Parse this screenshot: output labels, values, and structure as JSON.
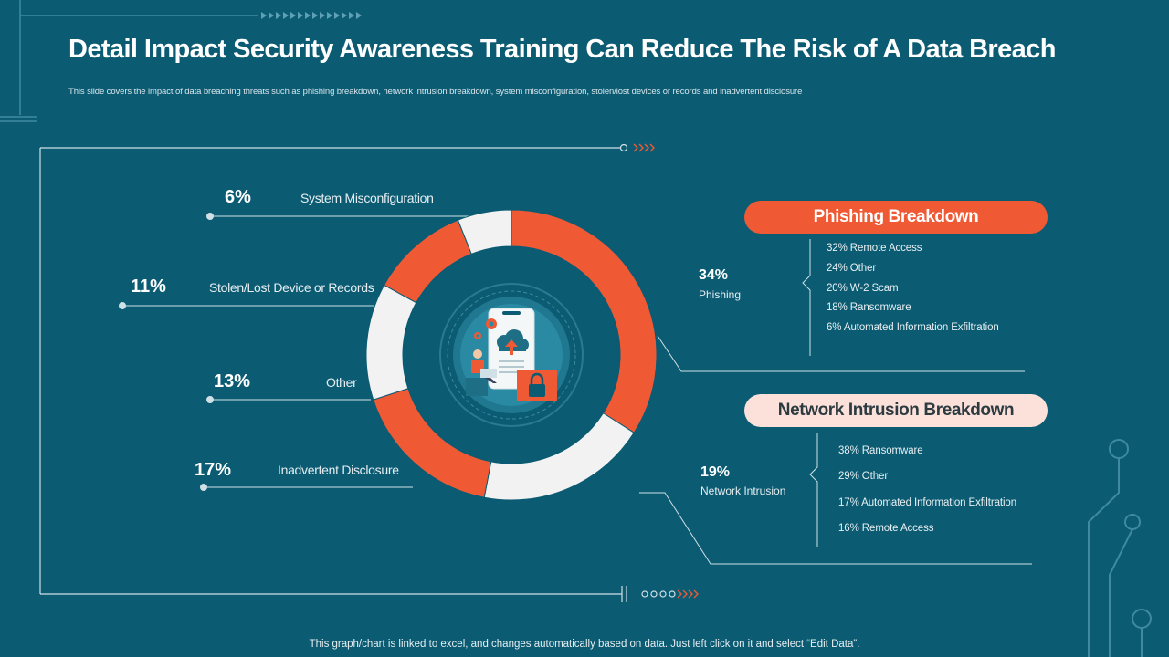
{
  "title": "Detail Impact Security Awareness Training Can Reduce The Risk of A Data Breach",
  "subtitle": "This slide covers the impact of data breaching threats such as phishing breakdown, network intrusion breakdown, system misconfiguration, stolen/lost devices or records and inadvertent disclosure",
  "footer": "This graph/chart is linked to excel, and changes automatically based on data. Just left click on it and select “Edit Data”.",
  "colors": {
    "background": "#0b5b73",
    "accent": "#ef5a35",
    "light": "#f2f2f2",
    "pill_light": "#fbe1da"
  },
  "chart_data": {
    "type": "donut",
    "segments": [
      {
        "name": "Phishing",
        "value": 34,
        "label": "34%",
        "color": "#ef5a35"
      },
      {
        "name": "Network Intrusion",
        "value": 19,
        "label": "19%",
        "color": "#f2f2f2"
      },
      {
        "name": "Inadvertent Disclosure",
        "value": 17,
        "label": "17%",
        "color": "#ef5a35"
      },
      {
        "name": "Other",
        "value": 13,
        "label": "13%",
        "color": "#f2f2f2"
      },
      {
        "name": "Stolen/Lost Device or Records",
        "value": 11,
        "label": "11%",
        "color": "#ef5a35"
      },
      {
        "name": "System Misconfiguration",
        "value": 6,
        "label": "6%",
        "color": "#f2f2f2"
      }
    ]
  },
  "left_labels": {
    "system_misconfig": {
      "pct": "6%",
      "label": "System Misconfiguration"
    },
    "stolen_lost": {
      "pct": "11%",
      "label": "Stolen/Lost Device or Records"
    },
    "other": {
      "pct": "13%",
      "label": "Other"
    },
    "inadvertent": {
      "pct": "17%",
      "label": "Inadvertent Disclosure"
    }
  },
  "phishing": {
    "pct": "34%",
    "label": "Phishing",
    "title": "Phishing Breakdown",
    "items": [
      "32% Remote Access",
      "24% Other",
      "20% W-2 Scam",
      "18% Ransomware",
      "6% Automated Information Exfiltration"
    ]
  },
  "network": {
    "pct": "19%",
    "label": "Network Intrusion",
    "title": "Network Intrusion Breakdown",
    "items": [
      "38% Ransomware",
      "29% Other",
      "17% Automated Information Exfiltration",
      "16% Remote Access"
    ]
  },
  "icons": {
    "center": "cloud-upload-security-icon",
    "lock": "padlock-icon",
    "person": "person-laptop-icon",
    "gear": "gear-icon"
  }
}
